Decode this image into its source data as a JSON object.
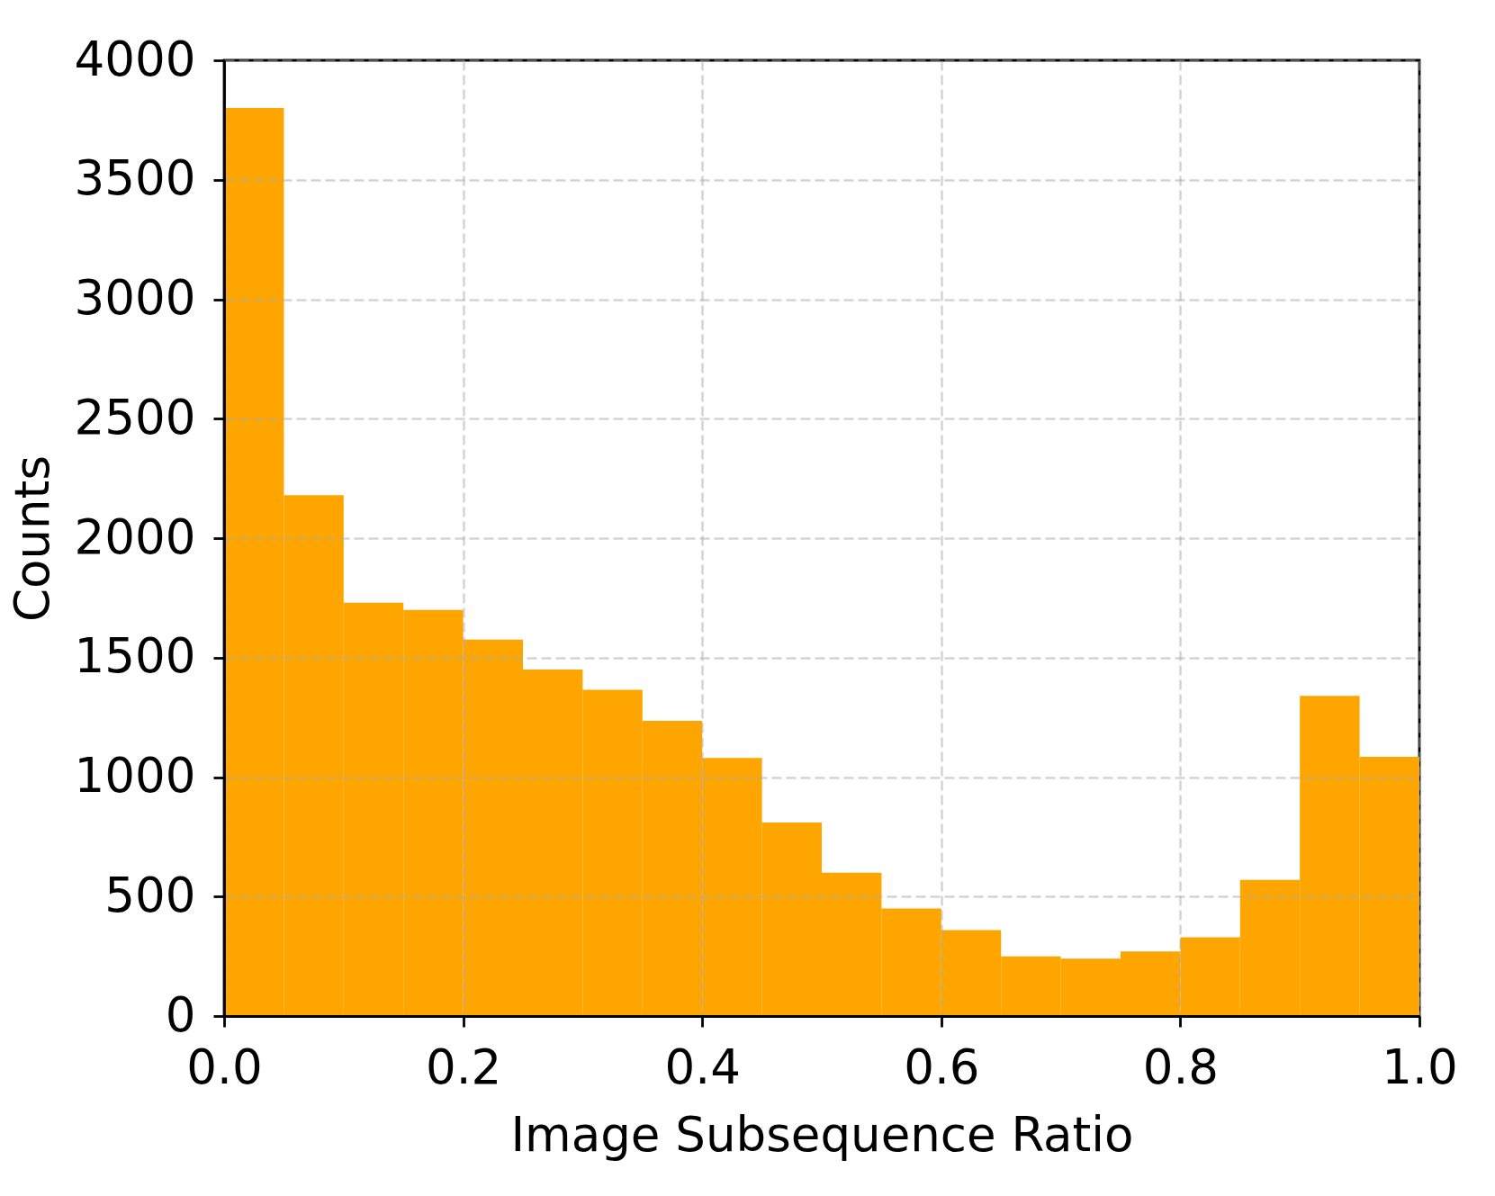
{
  "chart_data": {
    "type": "histogram",
    "xlabel": "Image Subsequence Ratio",
    "ylabel": "Counts",
    "bins": [
      0,
      0.05,
      0.1,
      0.15,
      0.2,
      0.25,
      0.3,
      0.35,
      0.4,
      0.45,
      0.5,
      0.55,
      0.6,
      0.65,
      0.7,
      0.75,
      0.8,
      0.85,
      0.9,
      0.95,
      1
    ],
    "values": [
      3800,
      2180,
      1730,
      1700,
      1575,
      1450,
      1365,
      1235,
      1080,
      810,
      600,
      450,
      360,
      250,
      240,
      270,
      330,
      570,
      1340,
      1085
    ],
    "color": "#ffa500",
    "xlim": [
      0,
      1
    ],
    "xticks": [
      {
        "value": 0,
        "label": "0.0"
      },
      0.2,
      0.4,
      0.6,
      0.8,
      {
        "value": 1,
        "label": "1.0"
      }
    ],
    "ylim": [
      0,
      4000
    ],
    "yticks": [
      0,
      500,
      1000,
      1500,
      2000,
      2500,
      3000,
      3500,
      4000
    ],
    "grid": true
  }
}
